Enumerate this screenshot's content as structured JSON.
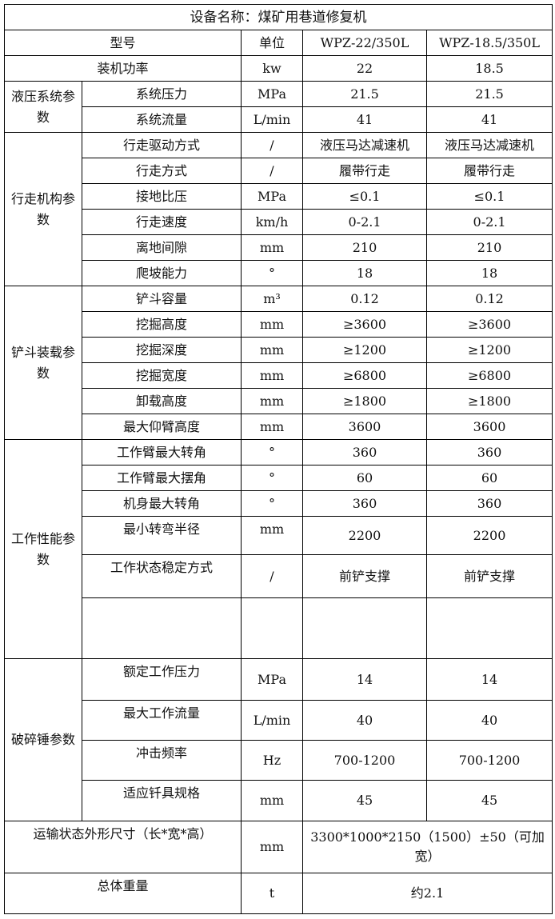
{
  "title": "设备名称：煤矿用巷道修复机",
  "header": {
    "model": "型号",
    "unit": "单位",
    "model_1": "WPZ-22/350L",
    "model_2": "WPZ-18.5/350L"
  },
  "rows": [
    {
      "label": "装机功率",
      "unit": "kw",
      "v1": "22",
      "v2": "18.5"
    },
    {
      "group": "液压系统参数",
      "label": "系统压力",
      "unit": "MPa",
      "v1": "21.5",
      "v2": "21.5"
    },
    {
      "label": "系统流量",
      "unit": "L/min",
      "v1": "41",
      "v2": "41"
    },
    {
      "group": "行走机构参数",
      "label": "行走驱动方式",
      "unit": "/",
      "v1": "液压马达减速机",
      "v2": "液压马达减速机"
    },
    {
      "label": "行走方式",
      "unit": "/",
      "v1": "履带行走",
      "v2": "履带行走"
    },
    {
      "label": "接地比压",
      "unit": "MPa",
      "v1": "≤0.1",
      "v2": "≤0.1"
    },
    {
      "label": "行走速度",
      "unit": "km/h",
      "v1": "0-2.1",
      "v2": "0-2.1"
    },
    {
      "label": "离地间隙",
      "unit": "mm",
      "v1": "210",
      "v2": "210"
    },
    {
      "label": "爬坡能力",
      "unit": "°",
      "v1": "18",
      "v2": "18"
    },
    {
      "group": "铲斗装载参数",
      "label": "铲斗容量",
      "unit": "m³",
      "v1": "0.12",
      "v2": "0.12"
    },
    {
      "label": "挖掘高度",
      "unit": "mm",
      "v1": "≥3600",
      "v2": "≥3600"
    },
    {
      "label": "挖掘深度",
      "unit": "mm",
      "v1": "≥1200",
      "v2": "≥1200"
    },
    {
      "label": "挖掘宽度",
      "unit": "mm",
      "v1": "≥6800",
      "v2": "≥6800"
    },
    {
      "label": "卸载高度",
      "unit": "mm",
      "v1": "≥1800",
      "v2": "≥1800"
    },
    {
      "label": "最大仰臂高度",
      "unit": "mm",
      "v1": "3600",
      "v2": "3600"
    },
    {
      "group": "工作性能参数",
      "label": "工作臂最大转角",
      "unit": "°",
      "v1": "360",
      "v2": "360"
    },
    {
      "label": "工作臂最大摆角",
      "unit": "°",
      "v1": "60",
      "v2": "60"
    },
    {
      "label": "机身最大转角",
      "unit": "°",
      "v1": "360",
      "v2": "360"
    },
    {
      "label": "最小转弯半径",
      "unit": "mm",
      "v1": "2200",
      "v2": "2200"
    },
    {
      "label": "工作状态稳定方式",
      "unit": "/",
      "v1": "前铲支撑",
      "v2": "前铲支撑"
    },
    {
      "label": "",
      "unit": "",
      "v1": "",
      "v2": ""
    },
    {
      "group": "破碎锤参数",
      "label": "额定工作压力",
      "unit": "MPa",
      "v1": "14",
      "v2": "14"
    },
    {
      "label": "最大工作流量",
      "unit": "L/min",
      "v1": "40",
      "v2": "40"
    },
    {
      "label": "冲击频率",
      "unit": "Hz",
      "v1": "700-1200",
      "v2": "700-1200"
    },
    {
      "label": "适应钎具规格",
      "unit": "mm",
      "v1": "45",
      "v2": "45"
    },
    {
      "label": "运输状态外形尺寸（长*宽*高）",
      "unit": "mm",
      "v": "3300*1000*2150（1500）±50（可加宽）"
    },
    {
      "label": "总体重量",
      "unit": "t",
      "v": "约2.1"
    }
  ]
}
